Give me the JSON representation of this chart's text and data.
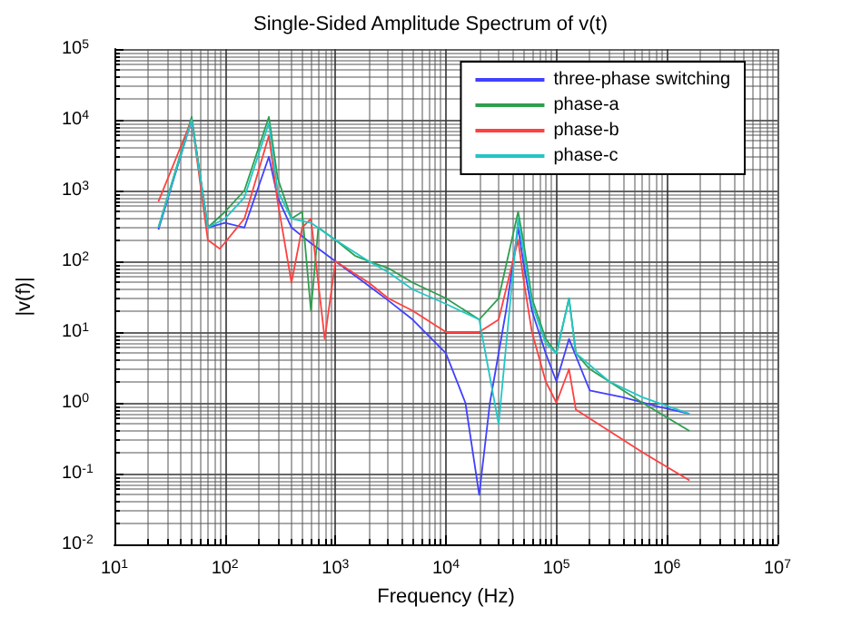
{
  "chart_data": {
    "type": "line",
    "title": "Single-Sided Amplitude Spectrum of v(t)",
    "xlabel": "Frequency (Hz)",
    "ylabel": "|v(f)|",
    "log": "xy",
    "grid": true,
    "legend": "top right",
    "marker": "none",
    "line_style": "solid",
    "xlim": [
      10,
      10000000
    ],
    "ylim": [
      0.01,
      100000
    ],
    "xticks": [
      {
        "value": 10,
        "label": "10$^{1}$"
      },
      {
        "value": 100,
        "label": "10$^{2}$"
      },
      {
        "value": 1000,
        "label": "10$^{3}$"
      },
      {
        "value": 10000,
        "label": "10$^{4}$"
      },
      {
        "value": 100000,
        "label": "10$^{5}$"
      },
      {
        "value": 1000000,
        "label": "10$^{6}$"
      },
      {
        "value": 10000000,
        "label": "10$^{7}$"
      }
    ],
    "yticks": [
      {
        "value": 0.01,
        "label": "10$^{-2}$"
      },
      {
        "value": 0.1,
        "label": "10$^{-1}$"
      },
      {
        "value": 1,
        "label": "10$^{0}$"
      },
      {
        "value": 10,
        "label": "10$^{1}$"
      },
      {
        "value": 100,
        "label": "10$^{2}$"
      },
      {
        "value": 1000,
        "label": "10$^{3}$"
      },
      {
        "value": 10000,
        "label": "10$^{4}$"
      },
      {
        "value": 100000,
        "label": "10$^{5}$"
      }
    ],
    "series": [
      {
        "name": "three-phase switching",
        "color": "#4040ff",
        "x": [
          25,
          50,
          70,
          100,
          150,
          250,
          300,
          400,
          600,
          1000,
          2000,
          3000,
          5000,
          10000,
          15000,
          20000,
          25000,
          35000,
          45000,
          50000,
          60000,
          80000,
          100000,
          130000,
          200000,
          400000,
          800000,
          1600000
        ],
        "values": [
          280,
          10000,
          300,
          350,
          300,
          3000,
          800,
          300,
          180,
          100,
          45,
          28,
          15,
          5,
          1,
          0.05,
          1,
          20,
          300,
          100,
          20,
          5,
          2,
          8,
          1.5,
          1.2,
          0.9,
          0.7
        ]
      },
      {
        "name": "phase-a",
        "color": "#2e9e4f",
        "x": [
          25,
          50,
          70,
          100,
          150,
          250,
          300,
          400,
          500,
          600,
          700,
          1000,
          1500,
          2000,
          3000,
          5000,
          10000,
          20000,
          30000,
          45000,
          50000,
          60000,
          80000,
          100000,
          130000,
          150000,
          200000,
          300000,
          600000,
          1600000
        ],
        "values": [
          300,
          11000,
          300,
          500,
          1000,
          11000,
          1500,
          400,
          500,
          20,
          300,
          200,
          120,
          100,
          80,
          50,
          30,
          15,
          30,
          500,
          200,
          30,
          8,
          5,
          30,
          5,
          3,
          2,
          1,
          0.4
        ]
      },
      {
        "name": "phase-b",
        "color": "#ff4040",
        "x": [
          25,
          50,
          70,
          90,
          150,
          250,
          300,
          400,
          500,
          600,
          800,
          1000,
          2000,
          3000,
          5000,
          10000,
          20000,
          30000,
          45000,
          50000,
          60000,
          80000,
          100000,
          130000,
          150000,
          300000,
          600000,
          1600000
        ],
        "values": [
          700,
          10000,
          200,
          150,
          400,
          6000,
          700,
          50,
          300,
          400,
          8,
          100,
          50,
          30,
          20,
          10,
          10,
          15,
          200,
          60,
          10,
          2,
          1,
          3,
          0.8,
          0.4,
          0.2,
          0.08
        ]
      },
      {
        "name": "phase-c",
        "color": "#22c6c6",
        "x": [
          25,
          50,
          70,
          100,
          150,
          250,
          300,
          400,
          600,
          1000,
          2000,
          3000,
          5000,
          10000,
          20000,
          30000,
          45000,
          50000,
          60000,
          80000,
          100000,
          130000,
          150000,
          300000,
          600000,
          1600000
        ],
        "values": [
          300,
          10000,
          300,
          400,
          800,
          9000,
          1000,
          400,
          350,
          200,
          100,
          70,
          40,
          25,
          15,
          0.5,
          400,
          150,
          25,
          7,
          5,
          30,
          5,
          2,
          1.2,
          0.7
        ]
      }
    ]
  }
}
